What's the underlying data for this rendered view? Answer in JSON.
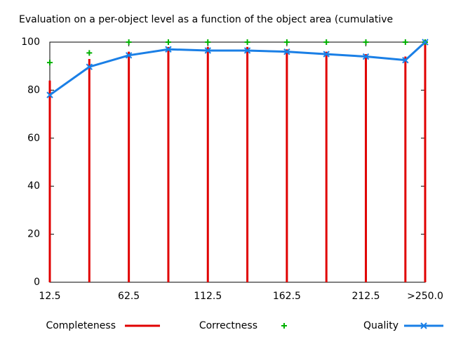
{
  "chart_data": {
    "type": "line",
    "title": "Evaluation on a per-object level as a function of the object area (cumulative",
    "x": [
      12.5,
      37.5,
      62.5,
      87.5,
      112.5,
      137.5,
      162.5,
      187.5,
      212.5,
      237.5,
      250
    ],
    "xlim": [
      12.5,
      250
    ],
    "xticks": [
      12.5,
      62.5,
      112.5,
      162.5,
      212.5,
      {
        "value": 250,
        "label": ">250.0"
      }
    ],
    "ylim": [
      0,
      100
    ],
    "yticks": [
      0,
      20,
      40,
      60,
      80,
      100
    ],
    "series": [
      {
        "name": "Completeness",
        "color": "#e00000",
        "style": "impulses",
        "values": [
          84,
          93,
          96,
          98,
          98,
          98,
          97,
          96,
          95,
          94,
          100
        ]
      },
      {
        "name": "Correctness",
        "color": "#00b000",
        "style": "points",
        "values": [
          91.5,
          95.5,
          100,
          100,
          100,
          100,
          100,
          100,
          100,
          100,
          100
        ]
      },
      {
        "name": "Quality",
        "color": "#1a7fe6",
        "style": "linespoints",
        "values": [
          78,
          89.7,
          94.5,
          97,
          96.5,
          96.5,
          96,
          95,
          94,
          92.5,
          100
        ]
      }
    ]
  }
}
